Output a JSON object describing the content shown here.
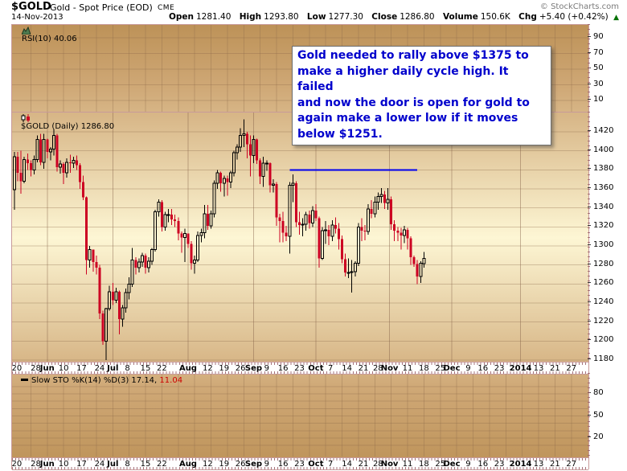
{
  "header": {
    "symbol": "$GOLD",
    "description": "Gold - Spot Price (EOD)",
    "exchange": "CME",
    "date": "14-Nov-2013",
    "credit": "© StockCharts.com",
    "quote": {
      "open_label": "Open",
      "open": "1281.40",
      "high_label": "High",
      "high": "1293.80",
      "low_label": "Low",
      "low": "1277.30",
      "close_label": "Close",
      "close": "1286.80",
      "volume_label": "Volume",
      "volume": "150.6K",
      "chg_label": "Chg",
      "chg": "+5.40 (+0.42%)",
      "direction": "up",
      "arrow": "▲"
    }
  },
  "annotation": {
    "text": "Gold needed to rally above $1375 to\nmake a higher daily cycle high. It failed\nand now the door is open for gold to\nagain make a lower low if it moves\nbelow $1251.",
    "text_color": "#0000cc"
  },
  "xaxis": {
    "labels": [
      {
        "t": "20",
        "s": 0.7
      },
      {
        "t": "28",
        "s": 6.5
      },
      {
        "t": "Jun",
        "s": 10,
        "b": 1
      },
      {
        "t": "10",
        "s": 15
      },
      {
        "t": "17",
        "s": 20.5
      },
      {
        "t": "24",
        "s": 26
      },
      {
        "t": "Jul",
        "s": 30,
        "b": 1
      },
      {
        "t": "8",
        "s": 34.5
      },
      {
        "t": "15",
        "s": 40
      },
      {
        "t": "22",
        "s": 45
      },
      {
        "t": "Aug",
        "s": 53,
        "b": 1
      },
      {
        "t": "12",
        "s": 59
      },
      {
        "t": "19",
        "s": 64
      },
      {
        "t": "26",
        "s": 69
      },
      {
        "t": "Sep",
        "s": 73,
        "b": 1
      },
      {
        "t": "9",
        "s": 77
      },
      {
        "t": "16",
        "s": 82
      },
      {
        "t": "23",
        "s": 87
      },
      {
        "t": "Oct",
        "s": 92,
        "b": 1
      },
      {
        "t": "7",
        "s": 96.5
      },
      {
        "t": "14",
        "s": 101.5
      },
      {
        "t": "21",
        "s": 106.5
      },
      {
        "t": "28",
        "s": 111
      },
      {
        "t": "Nov",
        "s": 114.5,
        "b": 1
      },
      {
        "t": "11",
        "s": 120
      },
      {
        "t": "18",
        "s": 125
      },
      {
        "t": "25",
        "s": 130
      },
      {
        "t": "Dec",
        "s": 133.5,
        "b": 1
      },
      {
        "t": "9",
        "s": 138.5
      },
      {
        "t": "16",
        "s": 143
      },
      {
        "t": "23",
        "s": 148
      },
      {
        "t": "2014",
        "s": 154.5,
        "b": 1
      },
      {
        "t": "13",
        "s": 160
      },
      {
        "t": "21",
        "s": 165
      },
      {
        "t": "27",
        "s": 170
      }
    ],
    "total_slots": 175
  },
  "chart_data": [
    {
      "type": "line",
      "panel": "rsi",
      "label": "RSI(10) 40.06",
      "indicator": "RSI(10)",
      "value": 40.06,
      "yticks": [
        90,
        70,
        50,
        30,
        10
      ],
      "ylim": [
        0,
        100
      ],
      "series": [],
      "line_visible": false
    },
    {
      "type": "candlestick",
      "panel": "main",
      "label": "$GOLD (Daily) 1286.80",
      "last_close": 1286.8,
      "ylim": [
        1178,
        1441
      ],
      "yticks": [
        1420,
        1400,
        1380,
        1360,
        1340,
        1320,
        1300,
        1280,
        1260,
        1240,
        1220,
        1200,
        1180
      ],
      "month_grid_slots": [
        10,
        30,
        53,
        73,
        92,
        114.5,
        133.5,
        154.5
      ],
      "up_color": "#000000",
      "down_color": "#cc0022",
      "overlay_line": {
        "price": 1380,
        "from_slot": 84,
        "to_slot": 123,
        "color": "#0000ee",
        "width": 2
      },
      "ohlc": [
        [
          1359,
          1399,
          1338,
          1394
        ],
        [
          1394,
          1399,
          1368,
          1377
        ],
        [
          1377,
          1400,
          1355,
          1368
        ],
        [
          1368,
          1394,
          1366,
          1391
        ],
        [
          1391,
          1397,
          1380,
          1387
        ],
        [
          1387,
          1390,
          1373,
          1380
        ],
        [
          1380,
          1395,
          1375,
          1391
        ],
        [
          1391,
          1416,
          1388,
          1412
        ],
        [
          1412,
          1418,
          1385,
          1388
        ],
        [
          1388,
          1418,
          1381,
          1412
        ],
        [
          1412,
          1413,
          1392,
          1399
        ],
        [
          1399,
          1404,
          1390,
          1402
        ],
        [
          1402,
          1423,
          1395,
          1416
        ],
        [
          1416,
          1418,
          1378,
          1383
        ],
        [
          1383,
          1390,
          1376,
          1386
        ],
        [
          1386,
          1388,
          1365,
          1377
        ],
        [
          1377,
          1392,
          1372,
          1388
        ],
        [
          1388,
          1396,
          1377,
          1387
        ],
        [
          1387,
          1394,
          1382,
          1390
        ],
        [
          1390,
          1395,
          1380,
          1385
        ],
        [
          1385,
          1387,
          1360,
          1367
        ],
        [
          1367,
          1374,
          1348,
          1351
        ],
        [
          1351,
          1352,
          1270,
          1285
        ],
        [
          1285,
          1300,
          1277,
          1296
        ],
        [
          1296,
          1296,
          1273,
          1283
        ],
        [
          1283,
          1290,
          1270,
          1277
        ],
        [
          1277,
          1280,
          1223,
          1229
        ],
        [
          1229,
          1232,
          1196,
          1200
        ],
        [
          1200,
          1235,
          1180,
          1234
        ],
        [
          1234,
          1258,
          1232,
          1252
        ],
        [
          1252,
          1261,
          1238,
          1243
        ],
        [
          1243,
          1256,
          1240,
          1252
        ],
        [
          1252,
          1253,
          1207,
          1223
        ],
        [
          1223,
          1238,
          1215,
          1235
        ],
        [
          1235,
          1255,
          1230,
          1251
        ],
        [
          1251,
          1267,
          1244,
          1260
        ],
        [
          1260,
          1298,
          1257,
          1285
        ],
        [
          1285,
          1288,
          1270,
          1277
        ],
        [
          1277,
          1287,
          1272,
          1283
        ],
        [
          1283,
          1293,
          1278,
          1290
        ],
        [
          1290,
          1292,
          1271,
          1277
        ],
        [
          1277,
          1288,
          1272,
          1284
        ],
        [
          1284,
          1298,
          1280,
          1296
        ],
        [
          1296,
          1338,
          1294,
          1336
        ],
        [
          1336,
          1349,
          1331,
          1346
        ],
        [
          1346,
          1348,
          1315,
          1320
        ],
        [
          1320,
          1336,
          1316,
          1333
        ],
        [
          1333,
          1339,
          1325,
          1333
        ],
        [
          1333,
          1339,
          1322,
          1328
        ],
        [
          1328,
          1333,
          1320,
          1326
        ],
        [
          1326,
          1330,
          1306,
          1313
        ],
        [
          1313,
          1315,
          1293,
          1309
        ],
        [
          1309,
          1318,
          1283,
          1313
        ],
        [
          1313,
          1313,
          1298,
          1302
        ],
        [
          1302,
          1305,
          1275,
          1282
        ],
        [
          1282,
          1290,
          1271,
          1285
        ],
        [
          1285,
          1315,
          1283,
          1311
        ],
        [
          1311,
          1318,
          1304,
          1314
        ],
        [
          1314,
          1343,
          1308,
          1334
        ],
        [
          1334,
          1343,
          1317,
          1321
        ],
        [
          1321,
          1337,
          1318,
          1334
        ],
        [
          1334,
          1369,
          1330,
          1366
        ],
        [
          1366,
          1380,
          1360,
          1377
        ],
        [
          1377,
          1378,
          1357,
          1366
        ],
        [
          1366,
          1374,
          1352,
          1371
        ],
        [
          1371,
          1374,
          1353,
          1367
        ],
        [
          1367,
          1379,
          1361,
          1377
        ],
        [
          1377,
          1400,
          1373,
          1398
        ],
        [
          1398,
          1407,
          1391,
          1404
        ],
        [
          1404,
          1424,
          1399,
          1416
        ],
        [
          1416,
          1433,
          1404,
          1418
        ],
        [
          1418,
          1420,
          1392,
          1407
        ],
        [
          1407,
          1416,
          1373,
          1395
        ],
        [
          1395,
          1416,
          1387,
          1412
        ],
        [
          1412,
          1413,
          1386,
          1390
        ],
        [
          1390,
          1392,
          1365,
          1373
        ],
        [
          1373,
          1394,
          1362,
          1387
        ],
        [
          1387,
          1390,
          1379,
          1387
        ],
        [
          1387,
          1388,
          1356,
          1364
        ],
        [
          1364,
          1370,
          1356,
          1365
        ],
        [
          1365,
          1367,
          1321,
          1330
        ],
        [
          1330,
          1334,
          1304,
          1326
        ],
        [
          1326,
          1336,
          1304,
          1314
        ],
        [
          1314,
          1321,
          1305,
          1310
        ],
        [
          1310,
          1367,
          1292,
          1364
        ],
        [
          1364,
          1375,
          1346,
          1366
        ],
        [
          1366,
          1368,
          1320,
          1325
        ],
        [
          1325,
          1336,
          1312,
          1322
        ],
        [
          1322,
          1329,
          1310,
          1323
        ],
        [
          1323,
          1336,
          1316,
          1333
        ],
        [
          1333,
          1337,
          1318,
          1324
        ],
        [
          1324,
          1342,
          1320,
          1337
        ],
        [
          1337,
          1344,
          1326,
          1329
        ],
        [
          1329,
          1331,
          1277,
          1287
        ],
        [
          1287,
          1320,
          1285,
          1316
        ],
        [
          1316,
          1326,
          1302,
          1317
        ],
        [
          1317,
          1322,
          1301,
          1310
        ],
        [
          1310,
          1327,
          1305,
          1322
        ],
        [
          1322,
          1330,
          1313,
          1318
        ],
        [
          1318,
          1324,
          1296,
          1307
        ],
        [
          1307,
          1311,
          1282,
          1286
        ],
        [
          1286,
          1292,
          1268,
          1272
        ],
        [
          1272,
          1287,
          1266,
          1272
        ],
        [
          1272,
          1285,
          1251,
          1273
        ],
        [
          1273,
          1284,
          1268,
          1282
        ],
        [
          1282,
          1324,
          1279,
          1320
        ],
        [
          1320,
          1329,
          1305,
          1316
        ],
        [
          1316,
          1322,
          1306,
          1315
        ],
        [
          1315,
          1344,
          1312,
          1339
        ],
        [
          1339,
          1348,
          1329,
          1334
        ],
        [
          1334,
          1352,
          1330,
          1346
        ],
        [
          1346,
          1356,
          1338,
          1352
        ],
        [
          1352,
          1361,
          1345,
          1354
        ],
        [
          1354,
          1358,
          1339,
          1345
        ],
        [
          1345,
          1361,
          1338,
          1349
        ],
        [
          1349,
          1352,
          1317,
          1323
        ],
        [
          1323,
          1327,
          1305,
          1316
        ],
        [
          1316,
          1320,
          1305,
          1314
        ],
        [
          1314,
          1319,
          1296,
          1311
        ],
        [
          1311,
          1321,
          1303,
          1317
        ],
        [
          1317,
          1319,
          1296,
          1308
        ],
        [
          1308,
          1310,
          1280,
          1288
        ],
        [
          1288,
          1290,
          1278,
          1281
        ],
        [
          1281,
          1285,
          1260,
          1268
        ],
        [
          1268,
          1284,
          1261,
          1282
        ],
        [
          1281.4,
          1293.8,
          1277.3,
          1286.8
        ]
      ]
    },
    {
      "type": "line",
      "panel": "sto",
      "label": "Slow STO %K(14) %D(3) 17.14,",
      "label_value_red": "11.04",
      "indicator": "Slow STO %K(14) %D(3)",
      "values": [
        17.14,
        11.04
      ],
      "yticks": [
        80,
        50,
        20
      ],
      "yticks_minor": [
        90,
        80,
        70,
        60,
        50,
        40,
        30,
        20,
        10
      ],
      "ylim": [
        0,
        100
      ],
      "series": [],
      "line_visible": false
    }
  ],
  "colors": {
    "grid": "rgba(140,105,75,0.35)",
    "grid_strong": "rgba(130,95,70,0.45)",
    "frame": "#c89a9a",
    "up_candle": "#000000",
    "down_candle": "#cc0022",
    "overlay_blue": "#0000ee",
    "sto_red_value": "#cc0000",
    "arrow_green": "#067206"
  }
}
